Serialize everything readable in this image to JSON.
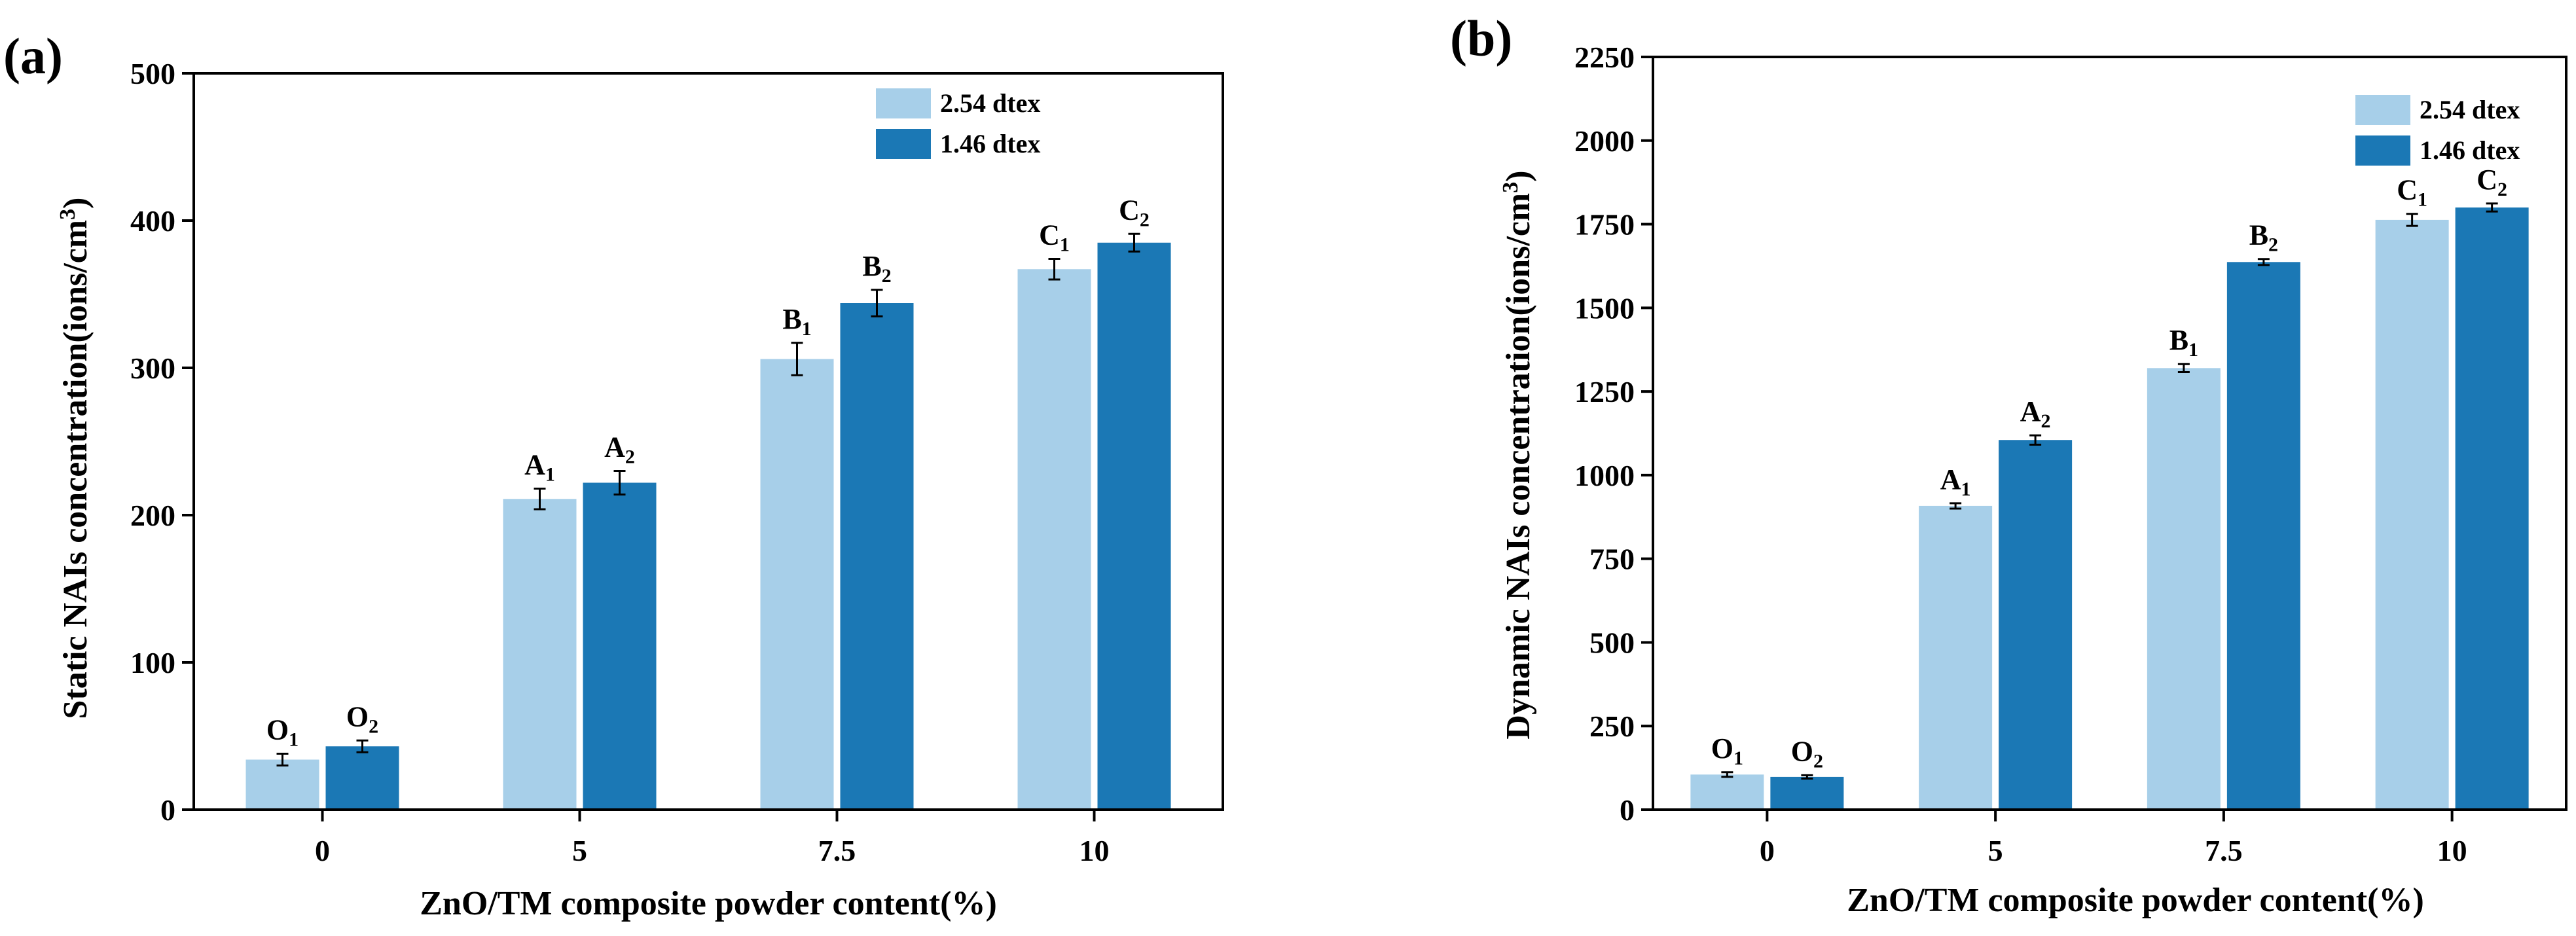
{
  "chart_data": [
    {
      "panel": "(a)",
      "type": "bar",
      "ylabel": "Static NAIs concentration(ions/cm",
      "ylabel_sup": "3",
      "ylabel_end": ")",
      "xlabel": "ZnO/TM composite powder content(%)",
      "categories": [
        "0",
        "5",
        "7.5",
        "10"
      ],
      "ylim": [
        0,
        500
      ],
      "yticks": [
        "0",
        "100",
        "200",
        "300",
        "400",
        "500"
      ],
      "ytick_values": [
        0,
        100,
        200,
        300,
        400,
        500
      ],
      "series": [
        {
          "name": "2.54 dtex",
          "color": "#a7cfe9",
          "values": [
            34,
            211,
            306,
            367
          ],
          "errors": [
            4,
            7,
            11,
            7
          ],
          "labels": [
            {
              "main": "O",
              "sub": "1"
            },
            {
              "main": "A",
              "sub": "1"
            },
            {
              "main": "B",
              "sub": "1"
            },
            {
              "main": "C",
              "sub": "1"
            }
          ]
        },
        {
          "name": "1.46 dtex",
          "color": "#1b78b5",
          "values": [
            43,
            222,
            344,
            385
          ],
          "errors": [
            4,
            8,
            9,
            6
          ],
          "labels": [
            {
              "main": "O",
              "sub": "2"
            },
            {
              "main": "A",
              "sub": "2"
            },
            {
              "main": "B",
              "sub": "2"
            },
            {
              "main": "C",
              "sub": "2"
            }
          ]
        }
      ],
      "legend_location": "top-right"
    },
    {
      "panel": "(b)",
      "type": "bar",
      "ylabel": "Dynamic NAIs concentration(ions/cm",
      "ylabel_sup": "3",
      "ylabel_end": ")",
      "xlabel": "ZnO/TM composite powder content(%)",
      "categories": [
        "0",
        "5",
        "7.5",
        "10"
      ],
      "ylim": [
        0,
        2250
      ],
      "yticks": [
        "0",
        "250",
        "500",
        "750",
        "1000",
        "1250",
        "1500",
        "1750",
        "2000",
        "2250"
      ],
      "ytick_values": [
        0,
        250,
        500,
        750,
        1000,
        1250,
        1500,
        1750,
        2000,
        2250
      ],
      "series": [
        {
          "name": "2.54 dtex",
          "color": "#a7cfe9",
          "values": [
            105,
            908,
            1320,
            1763
          ],
          "errors": [
            7,
            8,
            12,
            18
          ],
          "labels": [
            {
              "main": "O",
              "sub": "1"
            },
            {
              "main": "A",
              "sub": "1"
            },
            {
              "main": "B",
              "sub": "1"
            },
            {
              "main": "C",
              "sub": "1"
            }
          ]
        },
        {
          "name": "1.46 dtex",
          "color": "#1b78b5",
          "values": [
            98,
            1105,
            1637,
            1800
          ],
          "errors": [
            5,
            14,
            9,
            12
          ],
          "labels": [
            {
              "main": "O",
              "sub": "2"
            },
            {
              "main": "A",
              "sub": "2"
            },
            {
              "main": "B",
              "sub": "2"
            },
            {
              "main": "C",
              "sub": "2"
            }
          ]
        }
      ],
      "legend_location": "top-right"
    }
  ]
}
